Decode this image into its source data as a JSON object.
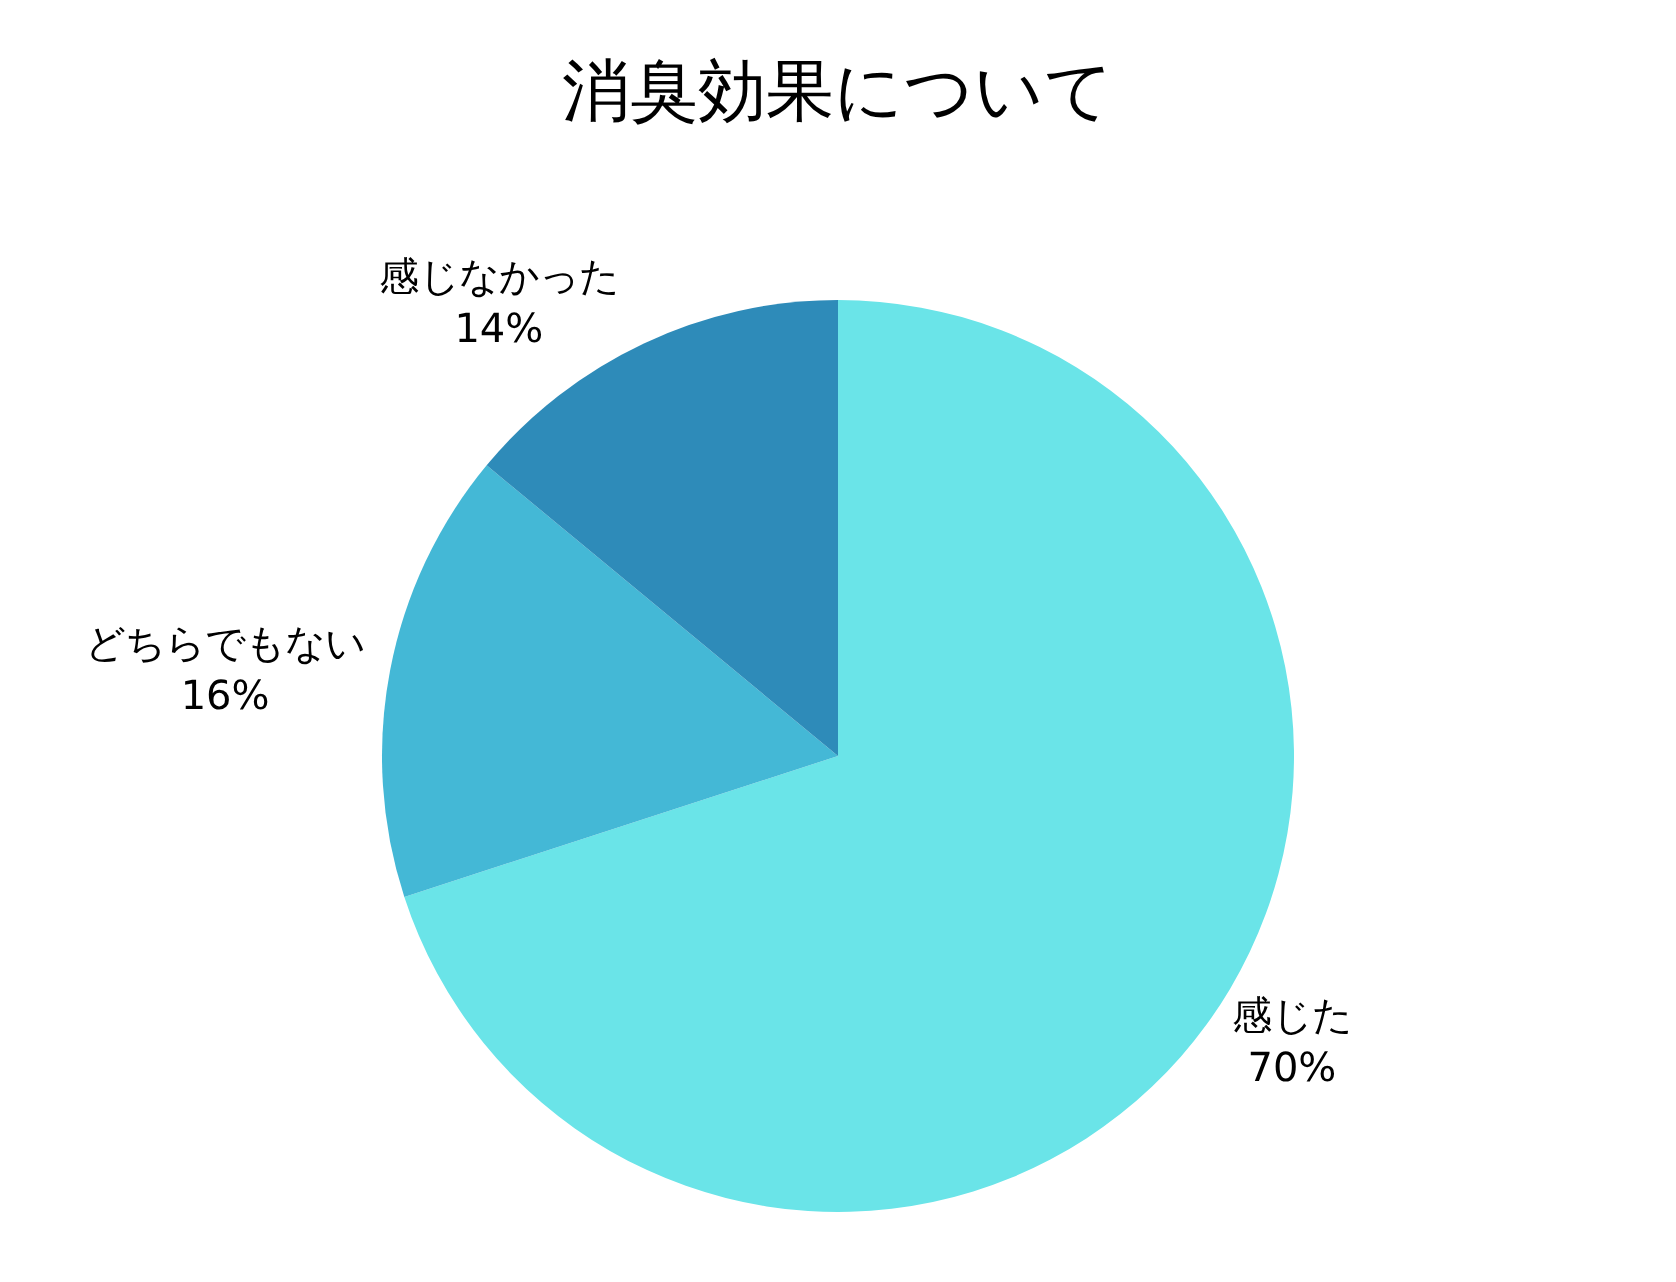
{
  "chart_data": {
    "type": "pie",
    "title": "消臭効果について",
    "categories": [
      "感じた",
      "どちらでもない",
      "感じなかった"
    ],
    "values": [
      70,
      16,
      14
    ],
    "colors": [
      "#6ae4e8",
      "#44b8d6",
      "#2e8bb9"
    ],
    "value_labels": [
      "70%",
      "16%",
      "14%"
    ],
    "legend": false
  }
}
